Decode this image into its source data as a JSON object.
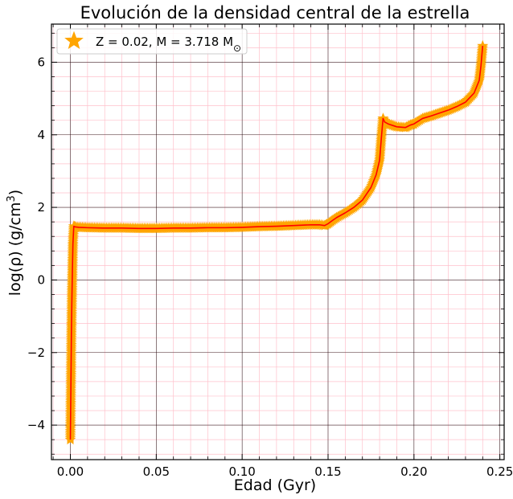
{
  "chart_data": {
    "type": "line",
    "title": "Evolución de la densidad central de la estrella",
    "xlabel": "Edad (Gyr)",
    "ylabel_main": "log(ρ) (g/cm",
    "ylabel_sup": "3",
    "ylabel_close": ")",
    "xlim": [
      -0.011,
      0.2525
    ],
    "ylim": [
      -4.95,
      7.05
    ],
    "xticks": [
      0.0,
      0.05,
      0.1,
      0.15,
      0.2,
      0.25
    ],
    "xtick_labels": [
      "0.00",
      "0.05",
      "0.10",
      "0.15",
      "0.20",
      "0.25"
    ],
    "yticks": [
      -4,
      -2,
      0,
      2,
      4,
      6
    ],
    "ytick_labels": [
      "−4",
      "−2",
      "0",
      "2",
      "4",
      "6"
    ],
    "grid": true,
    "legend_position": "top-left",
    "colors": {
      "line": "#ff0000",
      "marker": "#ffa500",
      "major_grid": "#000000",
      "minor_grid": "#ffc0cb"
    },
    "series": [
      {
        "name": "Z = 0.02, M = 3.718 M",
        "name_sub": "⊙",
        "marker": "star",
        "x": [
          0.0,
          0.0003,
          0.0006,
          0.0009,
          0.0012,
          0.0015,
          0.002,
          0.003,
          0.005,
          0.01,
          0.02,
          0.03,
          0.04,
          0.05,
          0.06,
          0.07,
          0.08,
          0.09,
          0.1,
          0.11,
          0.12,
          0.13,
          0.14,
          0.145,
          0.148,
          0.15,
          0.152,
          0.155,
          0.16,
          0.165,
          0.17,
          0.175,
          0.178,
          0.18,
          0.181,
          0.182,
          0.183,
          0.185,
          0.19,
          0.195,
          0.198,
          0.2,
          0.205,
          0.21,
          0.215,
          0.22,
          0.225,
          0.23,
          0.235,
          0.238,
          0.239,
          0.24
        ],
        "y": [
          -4.4,
          -3.0,
          -1.5,
          -0.5,
          0.3,
          1.0,
          1.48,
          1.46,
          1.45,
          1.44,
          1.43,
          1.43,
          1.42,
          1.42,
          1.43,
          1.43,
          1.44,
          1.44,
          1.45,
          1.47,
          1.48,
          1.5,
          1.52,
          1.52,
          1.5,
          1.55,
          1.62,
          1.72,
          1.85,
          2.0,
          2.2,
          2.55,
          2.9,
          3.3,
          3.9,
          4.45,
          4.35,
          4.3,
          4.22,
          4.2,
          4.27,
          4.3,
          4.45,
          4.52,
          4.6,
          4.68,
          4.78,
          4.9,
          5.15,
          5.5,
          5.9,
          6.45
        ]
      }
    ]
  }
}
